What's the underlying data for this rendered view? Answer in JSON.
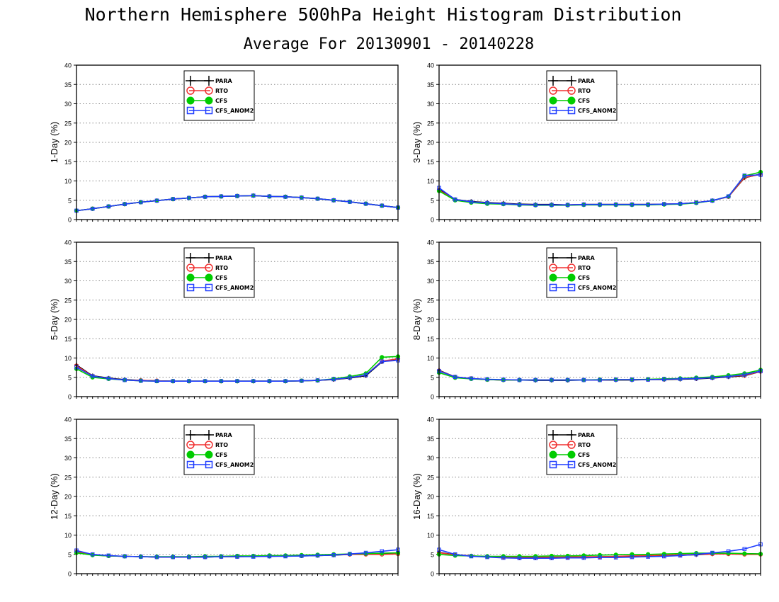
{
  "title": "Northern Hemisphere 500hPa Height Histogram Distribution",
  "subtitle": "Average For 20130901 - 20140228",
  "colors": {
    "PARA": "#000000",
    "RTO": "#f03030",
    "CFS": "#00cc00",
    "CFS_ANOM2": "#1e3cff"
  },
  "legend_labels": [
    "PARA",
    "RTO",
    "CFS",
    "CFS_ANOM2"
  ],
  "chart_data": [
    {
      "type": "line",
      "ylabel": "1-Day (%)",
      "ylim": [
        0,
        40
      ],
      "yticks": [
        0,
        5,
        10,
        15,
        20,
        25,
        30,
        35,
        40
      ],
      "grid": true,
      "legend": "top-center",
      "x": [
        1,
        2,
        3,
        4,
        5,
        6,
        7,
        8,
        9,
        10,
        11,
        12,
        13,
        14,
        15,
        16,
        17,
        18,
        19,
        20,
        21
      ],
      "series": [
        {
          "name": "PARA",
          "values": [
            2.3,
            2.8,
            3.4,
            4.0,
            4.5,
            4.9,
            5.3,
            5.6,
            5.9,
            6.0,
            6.1,
            6.2,
            6.0,
            5.9,
            5.7,
            5.4,
            5.0,
            4.6,
            4.1,
            3.6,
            3.1
          ]
        },
        {
          "name": "RTO",
          "values": [
            2.3,
            2.8,
            3.4,
            4.0,
            4.5,
            4.9,
            5.3,
            5.6,
            5.9,
            6.0,
            6.1,
            6.2,
            6.0,
            5.9,
            5.7,
            5.4,
            5.0,
            4.6,
            4.1,
            3.6,
            3.1
          ]
        },
        {
          "name": "CFS",
          "values": [
            2.3,
            2.8,
            3.4,
            4.0,
            4.5,
            4.9,
            5.3,
            5.6,
            5.9,
            6.0,
            6.1,
            6.2,
            6.0,
            5.9,
            5.7,
            5.4,
            5.0,
            4.6,
            4.1,
            3.6,
            3.1
          ]
        },
        {
          "name": "CFS_ANOM2",
          "values": [
            2.3,
            2.8,
            3.4,
            4.0,
            4.5,
            4.9,
            5.3,
            5.6,
            5.9,
            6.0,
            6.1,
            6.2,
            6.0,
            5.9,
            5.7,
            5.4,
            5.0,
            4.6,
            4.1,
            3.6,
            3.1
          ]
        }
      ]
    },
    {
      "type": "line",
      "ylabel": "3-Day (%)",
      "ylim": [
        0,
        40
      ],
      "yticks": [
        0,
        5,
        10,
        15,
        20,
        25,
        30,
        35,
        40
      ],
      "grid": true,
      "legend": "top-center",
      "x": [
        1,
        2,
        3,
        4,
        5,
        6,
        7,
        8,
        9,
        10,
        11,
        12,
        13,
        14,
        15,
        16,
        17,
        18,
        19,
        20,
        21
      ],
      "series": [
        {
          "name": "PARA",
          "values": [
            7.8,
            5.2,
            4.7,
            4.4,
            4.2,
            4.0,
            3.9,
            3.9,
            3.8,
            3.9,
            3.9,
            3.9,
            3.9,
            3.9,
            4.0,
            4.1,
            4.4,
            4.9,
            5.9,
            10.8,
            11.8
          ]
        },
        {
          "name": "RTO",
          "values": [
            7.6,
            5.1,
            4.6,
            4.3,
            4.1,
            3.9,
            3.8,
            3.8,
            3.8,
            3.9,
            3.9,
            3.9,
            3.9,
            3.9,
            4.0,
            4.1,
            4.4,
            4.9,
            5.9,
            10.9,
            11.7
          ]
        },
        {
          "name": "CFS",
          "values": [
            7.4,
            5.0,
            4.4,
            4.1,
            4.0,
            3.8,
            3.7,
            3.7,
            3.7,
            3.8,
            3.8,
            3.8,
            3.8,
            3.8,
            3.9,
            4.0,
            4.3,
            4.9,
            6.0,
            11.3,
            12.3
          ]
        },
        {
          "name": "CFS_ANOM2",
          "values": [
            8.2,
            5.2,
            4.6,
            4.3,
            4.1,
            3.9,
            3.8,
            3.8,
            3.8,
            3.9,
            3.9,
            3.9,
            3.9,
            3.9,
            4.0,
            4.1,
            4.4,
            4.9,
            6.0,
            11.4,
            11.6
          ]
        }
      ]
    },
    {
      "type": "line",
      "ylabel": "5-Day (%)",
      "ylim": [
        0,
        40
      ],
      "yticks": [
        0,
        5,
        10,
        15,
        20,
        25,
        30,
        35,
        40
      ],
      "grid": true,
      "legend": "top-center",
      "x": [
        1,
        2,
        3,
        4,
        5,
        6,
        7,
        8,
        9,
        10,
        11,
        12,
        13,
        14,
        15,
        16,
        17,
        18,
        19,
        20,
        21
      ],
      "series": [
        {
          "name": "PARA",
          "values": [
            8.2,
            5.4,
            4.8,
            4.4,
            4.2,
            4.1,
            4.0,
            4.0,
            4.0,
            4.0,
            4.0,
            4.0,
            4.0,
            4.0,
            4.1,
            4.2,
            4.4,
            4.8,
            5.4,
            9.0,
            9.8
          ]
        },
        {
          "name": "RTO",
          "values": [
            8.0,
            5.3,
            4.7,
            4.3,
            4.2,
            4.1,
            4.0,
            4.0,
            4.0,
            4.0,
            4.0,
            4.0,
            4.0,
            4.0,
            4.1,
            4.2,
            4.5,
            4.9,
            5.6,
            9.2,
            9.8
          ]
        },
        {
          "name": "CFS",
          "values": [
            7.2,
            5.0,
            4.6,
            4.3,
            4.1,
            4.0,
            4.0,
            4.0,
            4.0,
            4.0,
            4.0,
            4.0,
            4.0,
            4.0,
            4.1,
            4.2,
            4.6,
            5.2,
            6.0,
            10.2,
            10.4
          ]
        },
        {
          "name": "CFS_ANOM2",
          "values": [
            7.6,
            5.3,
            4.7,
            4.3,
            4.1,
            4.0,
            4.0,
            4.0,
            4.0,
            4.0,
            4.0,
            4.0,
            4.0,
            4.0,
            4.1,
            4.2,
            4.5,
            4.9,
            5.6,
            9.1,
            9.4
          ]
        }
      ]
    },
    {
      "type": "line",
      "ylabel": "8-Day (%)",
      "ylim": [
        0,
        40
      ],
      "yticks": [
        0,
        5,
        10,
        15,
        20,
        25,
        30,
        35,
        40
      ],
      "grid": true,
      "legend": "top-center",
      "x": [
        1,
        2,
        3,
        4,
        5,
        6,
        7,
        8,
        9,
        10,
        11,
        12,
        13,
        14,
        15,
        16,
        17,
        18,
        19,
        20,
        21
      ],
      "series": [
        {
          "name": "PARA",
          "values": [
            6.8,
            5.1,
            4.7,
            4.4,
            4.3,
            4.3,
            4.2,
            4.2,
            4.2,
            4.3,
            4.3,
            4.3,
            4.3,
            4.4,
            4.4,
            4.5,
            4.6,
            4.8,
            5.1,
            5.4,
            6.5
          ]
        },
        {
          "name": "RTO",
          "values": [
            6.7,
            5.1,
            4.7,
            4.4,
            4.3,
            4.3,
            4.3,
            4.3,
            4.3,
            4.3,
            4.3,
            4.4,
            4.4,
            4.4,
            4.5,
            4.6,
            4.7,
            4.9,
            5.2,
            5.5,
            6.5
          ]
        },
        {
          "name": "CFS",
          "values": [
            6.2,
            4.9,
            4.6,
            4.4,
            4.3,
            4.3,
            4.3,
            4.3,
            4.3,
            4.3,
            4.4,
            4.4,
            4.4,
            4.5,
            4.6,
            4.7,
            4.9,
            5.1,
            5.5,
            6.0,
            6.9
          ]
        },
        {
          "name": "CFS_ANOM2",
          "values": [
            6.6,
            5.1,
            4.7,
            4.5,
            4.4,
            4.3,
            4.3,
            4.3,
            4.3,
            4.3,
            4.3,
            4.4,
            4.4,
            4.4,
            4.5,
            4.6,
            4.7,
            4.9,
            5.2,
            5.7,
            6.6
          ]
        }
      ]
    },
    {
      "type": "line",
      "ylabel": "12-Day (%)",
      "ylim": [
        0,
        40
      ],
      "yticks": [
        0,
        5,
        10,
        15,
        20,
        25,
        30,
        35,
        40
      ],
      "grid": true,
      "legend": "top-center",
      "x": [
        1,
        2,
        3,
        4,
        5,
        6,
        7,
        8,
        9,
        10,
        11,
        12,
        13,
        14,
        15,
        16,
        17,
        18,
        19,
        20,
        21
      ],
      "series": [
        {
          "name": "PARA",
          "values": [
            5.8,
            4.9,
            4.6,
            4.5,
            4.4,
            4.3,
            4.3,
            4.3,
            4.3,
            4.4,
            4.4,
            4.5,
            4.5,
            4.6,
            4.6,
            4.7,
            4.8,
            5.0,
            5.1,
            5.2,
            5.2
          ]
        },
        {
          "name": "RTO",
          "values": [
            5.7,
            4.9,
            4.6,
            4.5,
            4.4,
            4.3,
            4.3,
            4.3,
            4.4,
            4.4,
            4.4,
            4.5,
            4.6,
            4.6,
            4.7,
            4.8,
            4.9,
            5.0,
            5.0,
            5.0,
            5.1
          ]
        },
        {
          "name": "CFS",
          "values": [
            5.4,
            4.8,
            4.6,
            4.5,
            4.4,
            4.4,
            4.4,
            4.4,
            4.5,
            4.5,
            4.6,
            4.6,
            4.7,
            4.7,
            4.8,
            4.9,
            5.0,
            5.1,
            5.2,
            5.3,
            5.4
          ]
        },
        {
          "name": "CFS_ANOM2",
          "values": [
            6.0,
            5.0,
            4.7,
            4.5,
            4.4,
            4.3,
            4.3,
            4.3,
            4.3,
            4.4,
            4.4,
            4.4,
            4.5,
            4.5,
            4.6,
            4.7,
            4.8,
            5.1,
            5.4,
            5.8,
            6.2
          ]
        }
      ]
    },
    {
      "type": "line",
      "ylabel": "16-Day (%)",
      "ylim": [
        0,
        40
      ],
      "yticks": [
        0,
        5,
        10,
        15,
        20,
        25,
        30,
        35,
        40
      ],
      "grid": true,
      "legend": "top-center",
      "x": [
        1,
        2,
        3,
        4,
        5,
        6,
        7,
        8,
        9,
        10,
        11,
        12,
        13,
        14,
        15,
        16,
        17,
        18,
        19,
        20,
        21
      ],
      "series": [
        {
          "name": "PARA",
          "values": [
            5.5,
            4.9,
            4.6,
            4.4,
            4.3,
            4.2,
            4.2,
            4.2,
            4.3,
            4.3,
            4.4,
            4.4,
            4.5,
            4.6,
            4.7,
            4.8,
            4.9,
            5.1,
            5.2,
            5.2,
            5.1
          ]
        },
        {
          "name": "RTO",
          "values": [
            5.4,
            4.9,
            4.6,
            4.4,
            4.3,
            4.3,
            4.3,
            4.3,
            4.3,
            4.4,
            4.4,
            4.5,
            4.6,
            4.7,
            4.8,
            4.9,
            5.0,
            5.1,
            5.1,
            5.0,
            5.0
          ]
        },
        {
          "name": "CFS",
          "values": [
            5.0,
            4.7,
            4.6,
            4.5,
            4.5,
            4.5,
            4.5,
            4.6,
            4.6,
            4.7,
            4.8,
            4.9,
            5.0,
            5.0,
            5.1,
            5.2,
            5.3,
            5.3,
            5.3,
            5.2,
            5.1
          ]
        },
        {
          "name": "CFS_ANOM2",
          "values": [
            6.2,
            5.0,
            4.5,
            4.3,
            4.1,
            4.0,
            4.0,
            4.0,
            4.1,
            4.1,
            4.2,
            4.2,
            4.3,
            4.4,
            4.5,
            4.7,
            5.0,
            5.4,
            5.8,
            6.4,
            7.6
          ]
        }
      ]
    }
  ]
}
